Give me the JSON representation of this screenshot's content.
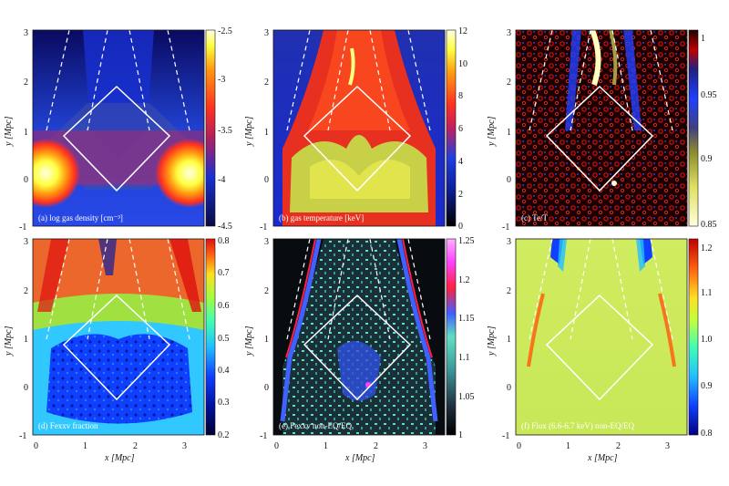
{
  "figure": {
    "x_axis_label": "x [Mpc]",
    "y_axis_label": "y [Mpc]",
    "x_ticks": [
      "0",
      "1",
      "2",
      "3"
    ],
    "y_ticks": [
      "3",
      "2",
      "1",
      "0",
      "-1"
    ],
    "panels": [
      {
        "id": "a",
        "label": "(a) log gas density [cm⁻³]",
        "colorbar_ticks": [
          "-2.5",
          "-3",
          "-3.5",
          "-4",
          "-4.5"
        ],
        "colormap": [
          "#0a0a40",
          "#1020c0",
          "#3050ff",
          "#b02060",
          "#ff3020",
          "#ff9010",
          "#ffff40",
          "#ffffe0"
        ]
      },
      {
        "id": "b",
        "label": "(b) gas temperature [keV]",
        "colorbar_ticks": [
          "12",
          "10",
          "8",
          "6",
          "4",
          "2",
          "0"
        ],
        "colormap": [
          "#000000",
          "#101070",
          "#2040e0",
          "#c02060",
          "#ff3020",
          "#ff9010",
          "#ffff40",
          "#ffffe0"
        ]
      },
      {
        "id": "c",
        "label": "(c) Te/T",
        "colorbar_ticks": [
          "1",
          "0.95",
          "0.9",
          "0.85"
        ],
        "colormap": [
          "#ffffe0",
          "#e0e060",
          "#a0a030",
          "#404080",
          "#2040ff",
          "#202080",
          "#800000",
          "#c00000",
          "#200000"
        ]
      },
      {
        "id": "d",
        "label": "(d) Fexxv fraction",
        "colorbar_ticks": [
          "0.8",
          "0.7",
          "0.6",
          "0.5",
          "0.4",
          "0.3",
          "0.2"
        ],
        "colormap": [
          "#000030",
          "#0010a0",
          "#1040ff",
          "#20c0ff",
          "#40ffb0",
          "#a0ff40",
          "#ffe020",
          "#ff6010",
          "#e01010"
        ]
      },
      {
        "id": "e",
        "label": "(e) Fexxv non-EQ/EQ",
        "colorbar_ticks": [
          "1.25",
          "1.2",
          "1.15",
          "1.1",
          "1.05",
          "1"
        ],
        "colormap": [
          "#000000",
          "#203040",
          "#40a0a0",
          "#60e0c0",
          "#4060ff",
          "#ff2040",
          "#ff40ff",
          "#ff80ff"
        ]
      },
      {
        "id": "f",
        "label": "(f) Flux (6.6-6.7 keV) non-EQ/EQ",
        "colorbar_ticks": [
          "1.2",
          "1.1",
          "1.0",
          "0.9",
          "0.8"
        ],
        "colormap": [
          "#000080",
          "#1040ff",
          "#20c0ff",
          "#40ffb0",
          "#c0ff40",
          "#ffe020",
          "#ff6010",
          "#c00000"
        ]
      }
    ]
  }
}
